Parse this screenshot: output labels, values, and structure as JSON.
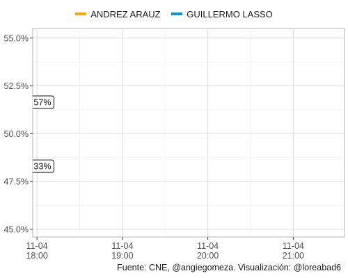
{
  "legend": {
    "items": [
      {
        "label": "ANDREZ ARAUZ",
        "color": "#F5A400"
      },
      {
        "label": "GUILLERMO LASSO",
        "color": "#0A97C4"
      }
    ]
  },
  "caption": "Fuente: CNE, @angiegomeza. Visualización: @loreabad6",
  "chart_data": {
    "type": "line",
    "ylim": [
      44.6,
      55.5
    ],
    "xlim": [
      17.95,
      21.6
    ],
    "y_ticks": [
      {
        "value": 45.0,
        "label": "45.0%"
      },
      {
        "value": 47.5,
        "label": "47.5%"
      },
      {
        "value": 50.0,
        "label": "50.0%"
      },
      {
        "value": 52.5,
        "label": "52.5%"
      },
      {
        "value": 55.0,
        "label": "55.0%"
      }
    ],
    "x_ticks": [
      {
        "value": 18,
        "line1": "11-04",
        "line2": "18:00"
      },
      {
        "value": 19,
        "line1": "11-04",
        "line2": "19:00"
      },
      {
        "value": 20,
        "line1": "11-04",
        "line2": "20:00"
      },
      {
        "value": 21,
        "line1": "11-04",
        "line2": "21:00"
      }
    ],
    "grid": true,
    "legend_position": "top",
    "series": [
      {
        "name": "ANDREZ ARAUZ",
        "color": "#F5A400"
      },
      {
        "name": "GUILLERMO LASSO",
        "color": "#0A97C4"
      }
    ],
    "annotations": [
      {
        "text": "57%",
        "x": 17.97,
        "y": 51.65
      },
      {
        "text": "33%",
        "x": 17.97,
        "y": 48.3
      }
    ]
  }
}
